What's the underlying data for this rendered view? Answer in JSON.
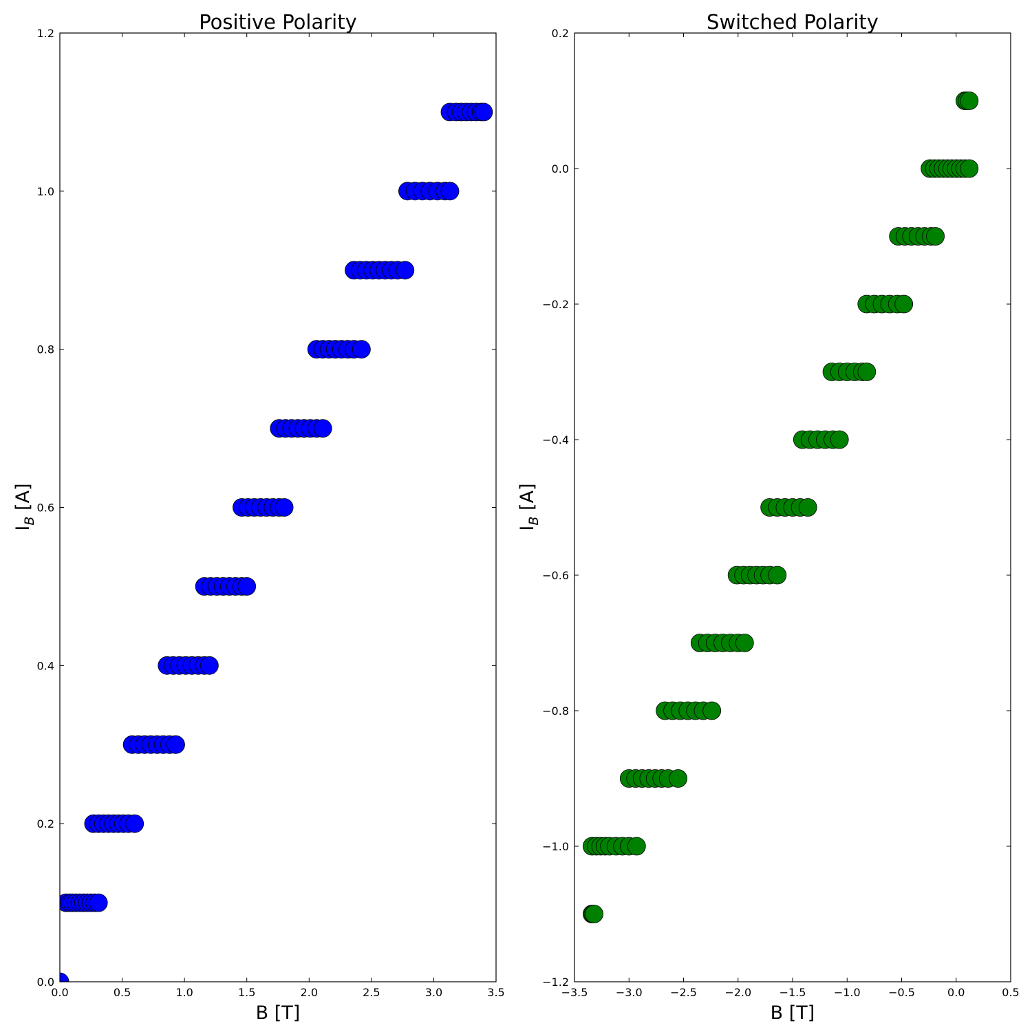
{
  "chart_data": [
    {
      "type": "scatter",
      "title": "Positive Polarity",
      "xlabel": "B [T]",
      "ylabel_main": "I",
      "ylabel_sub": "B",
      "ylabel_unit": " [A]",
      "xlim": [
        0.0,
        3.5
      ],
      "ylim": [
        0.0,
        1.2
      ],
      "xticks": [
        0.0,
        0.5,
        1.0,
        1.5,
        2.0,
        2.5,
        3.0,
        3.5
      ],
      "xtick_labels": [
        "0.0",
        "0.5",
        "1.0",
        "1.5",
        "2.0",
        "2.5",
        "3.0",
        "3.5"
      ],
      "yticks": [
        0.0,
        0.2,
        0.4,
        0.6,
        0.8,
        1.0,
        1.2
      ],
      "ytick_labels": [
        "0.0",
        "0.2",
        "0.4",
        "0.6",
        "0.8",
        "1.0",
        "1.2"
      ],
      "marker_color": "#0000ff",
      "grid": false,
      "series": [
        {
          "points": [
            [
              0.0,
              0.0
            ],
            [
              0.05,
              0.1
            ],
            [
              0.08,
              0.1
            ],
            [
              0.1,
              0.1
            ],
            [
              0.13,
              0.1
            ],
            [
              0.16,
              0.1
            ],
            [
              0.19,
              0.1
            ],
            [
              0.22,
              0.1
            ],
            [
              0.25,
              0.1
            ],
            [
              0.28,
              0.1
            ],
            [
              0.31,
              0.1
            ],
            [
              0.27,
              0.2
            ],
            [
              0.31,
              0.2
            ],
            [
              0.35,
              0.2
            ],
            [
              0.39,
              0.2
            ],
            [
              0.43,
              0.2
            ],
            [
              0.47,
              0.2
            ],
            [
              0.51,
              0.2
            ],
            [
              0.55,
              0.2
            ],
            [
              0.6,
              0.2
            ],
            [
              0.58,
              0.3
            ],
            [
              0.63,
              0.3
            ],
            [
              0.68,
              0.3
            ],
            [
              0.73,
              0.3
            ],
            [
              0.78,
              0.3
            ],
            [
              0.83,
              0.3
            ],
            [
              0.88,
              0.3
            ],
            [
              0.93,
              0.3
            ],
            [
              0.86,
              0.4
            ],
            [
              0.91,
              0.4
            ],
            [
              0.96,
              0.4
            ],
            [
              1.01,
              0.4
            ],
            [
              1.06,
              0.4
            ],
            [
              1.11,
              0.4
            ],
            [
              1.16,
              0.4
            ],
            [
              1.2,
              0.4
            ],
            [
              1.16,
              0.5
            ],
            [
              1.21,
              0.5
            ],
            [
              1.26,
              0.5
            ],
            [
              1.31,
              0.5
            ],
            [
              1.36,
              0.5
            ],
            [
              1.41,
              0.5
            ],
            [
              1.46,
              0.5
            ],
            [
              1.5,
              0.5
            ],
            [
              1.46,
              0.6
            ],
            [
              1.51,
              0.6
            ],
            [
              1.56,
              0.6
            ],
            [
              1.61,
              0.6
            ],
            [
              1.66,
              0.6
            ],
            [
              1.71,
              0.6
            ],
            [
              1.76,
              0.6
            ],
            [
              1.8,
              0.6
            ],
            [
              1.76,
              0.7
            ],
            [
              1.81,
              0.7
            ],
            [
              1.86,
              0.7
            ],
            [
              1.91,
              0.7
            ],
            [
              1.96,
              0.7
            ],
            [
              2.01,
              0.7
            ],
            [
              2.06,
              0.7
            ],
            [
              2.11,
              0.7
            ],
            [
              2.06,
              0.8
            ],
            [
              2.11,
              0.8
            ],
            [
              2.16,
              0.8
            ],
            [
              2.21,
              0.8
            ],
            [
              2.26,
              0.8
            ],
            [
              2.31,
              0.8
            ],
            [
              2.36,
              0.8
            ],
            [
              2.42,
              0.8
            ],
            [
              2.36,
              0.9
            ],
            [
              2.41,
              0.9
            ],
            [
              2.46,
              0.9
            ],
            [
              2.51,
              0.9
            ],
            [
              2.56,
              0.9
            ],
            [
              2.61,
              0.9
            ],
            [
              2.66,
              0.9
            ],
            [
              2.71,
              0.9
            ],
            [
              2.77,
              0.9
            ],
            [
              2.79,
              1.0
            ],
            [
              2.85,
              1.0
            ],
            [
              2.91,
              1.0
            ],
            [
              2.97,
              1.0
            ],
            [
              3.03,
              1.0
            ],
            [
              3.09,
              1.0
            ],
            [
              3.13,
              1.0
            ],
            [
              3.13,
              1.1
            ],
            [
              3.18,
              1.1
            ],
            [
              3.22,
              1.1
            ],
            [
              3.26,
              1.1
            ],
            [
              3.3,
              1.1
            ],
            [
              3.34,
              1.1
            ],
            [
              3.38,
              1.1
            ],
            [
              3.4,
              1.1
            ]
          ]
        }
      ]
    },
    {
      "type": "scatter",
      "title": "Switched Polarity",
      "xlabel": "B [T]",
      "ylabel_main": "I",
      "ylabel_sub": "B",
      "ylabel_unit": " [A]",
      "xlim": [
        -3.5,
        0.5
      ],
      "ylim": [
        -1.2,
        0.2
      ],
      "xticks": [
        -3.5,
        -3.0,
        -2.5,
        -2.0,
        -1.5,
        -1.0,
        -0.5,
        0.0,
        0.5
      ],
      "xtick_labels": [
        "−3.5",
        "−3.0",
        "−2.5",
        "−2.0",
        "−1.5",
        "−1.0",
        "−0.5",
        "0.0",
        "0.5"
      ],
      "yticks": [
        -1.2,
        -1.0,
        -0.8,
        -0.6,
        -0.4,
        -0.2,
        0.0,
        0.2
      ],
      "ytick_labels": [
        "−1.2",
        "−1.0",
        "−0.8",
        "−0.6",
        "−0.4",
        "−0.2",
        "0.0",
        "0.2"
      ],
      "marker_color": "#008000",
      "grid": false,
      "series": [
        {
          "points": [
            [
              -3.34,
              -1.1
            ],
            [
              -3.33,
              -1.1
            ],
            [
              -3.32,
              -1.1
            ],
            [
              -3.34,
              -1.0
            ],
            [
              -3.3,
              -1.0
            ],
            [
              -3.26,
              -1.0
            ],
            [
              -3.22,
              -1.0
            ],
            [
              -3.18,
              -1.0
            ],
            [
              -3.12,
              -1.0
            ],
            [
              -3.06,
              -1.0
            ],
            [
              -3.0,
              -1.0
            ],
            [
              -2.93,
              -1.0
            ],
            [
              -3.0,
              -0.9
            ],
            [
              -2.94,
              -0.9
            ],
            [
              -2.88,
              -0.9
            ],
            [
              -2.82,
              -0.9
            ],
            [
              -2.76,
              -0.9
            ],
            [
              -2.7,
              -0.9
            ],
            [
              -2.64,
              -0.9
            ],
            [
              -2.55,
              -0.9
            ],
            [
              -2.67,
              -0.8
            ],
            [
              -2.6,
              -0.8
            ],
            [
              -2.53,
              -0.8
            ],
            [
              -2.46,
              -0.8
            ],
            [
              -2.39,
              -0.8
            ],
            [
              -2.32,
              -0.8
            ],
            [
              -2.24,
              -0.8
            ],
            [
              -2.35,
              -0.7
            ],
            [
              -2.28,
              -0.7
            ],
            [
              -2.21,
              -0.7
            ],
            [
              -2.14,
              -0.7
            ],
            [
              -2.07,
              -0.7
            ],
            [
              -2.0,
              -0.7
            ],
            [
              -1.94,
              -0.7
            ],
            [
              -2.01,
              -0.6
            ],
            [
              -1.95,
              -0.6
            ],
            [
              -1.89,
              -0.6
            ],
            [
              -1.83,
              -0.6
            ],
            [
              -1.77,
              -0.6
            ],
            [
              -1.71,
              -0.6
            ],
            [
              -1.64,
              -0.6
            ],
            [
              -1.71,
              -0.5
            ],
            [
              -1.64,
              -0.5
            ],
            [
              -1.57,
              -0.5
            ],
            [
              -1.5,
              -0.5
            ],
            [
              -1.43,
              -0.5
            ],
            [
              -1.36,
              -0.5
            ],
            [
              -1.41,
              -0.4
            ],
            [
              -1.34,
              -0.4
            ],
            [
              -1.27,
              -0.4
            ],
            [
              -1.2,
              -0.4
            ],
            [
              -1.13,
              -0.4
            ],
            [
              -1.07,
              -0.4
            ],
            [
              -1.14,
              -0.3
            ],
            [
              -1.07,
              -0.3
            ],
            [
              -1.0,
              -0.3
            ],
            [
              -0.93,
              -0.3
            ],
            [
              -0.86,
              -0.3
            ],
            [
              -0.82,
              -0.3
            ],
            [
              -0.82,
              -0.2
            ],
            [
              -0.75,
              -0.2
            ],
            [
              -0.68,
              -0.2
            ],
            [
              -0.61,
              -0.2
            ],
            [
              -0.54,
              -0.2
            ],
            [
              -0.48,
              -0.2
            ],
            [
              -0.53,
              -0.1
            ],
            [
              -0.47,
              -0.1
            ],
            [
              -0.41,
              -0.1
            ],
            [
              -0.35,
              -0.1
            ],
            [
              -0.29,
              -0.1
            ],
            [
              -0.23,
              -0.1
            ],
            [
              -0.19,
              -0.1
            ],
            [
              -0.24,
              0.0
            ],
            [
              -0.2,
              0.0
            ],
            [
              -0.16,
              0.0
            ],
            [
              -0.12,
              0.0
            ],
            [
              -0.08,
              0.0
            ],
            [
              -0.04,
              0.0
            ],
            [
              0.0,
              0.0
            ],
            [
              0.04,
              0.0
            ],
            [
              0.08,
              0.0
            ],
            [
              0.12,
              0.0
            ],
            [
              0.08,
              0.1
            ],
            [
              0.1,
              0.1
            ],
            [
              0.12,
              0.1
            ]
          ]
        }
      ]
    }
  ]
}
